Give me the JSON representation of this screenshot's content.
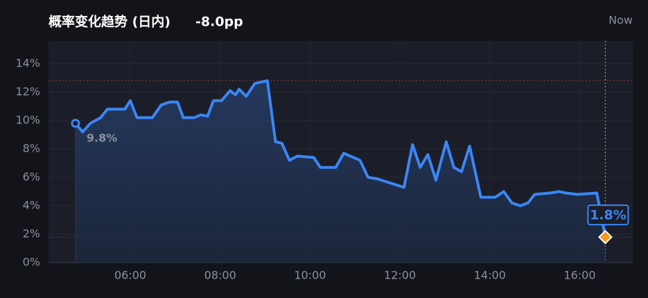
{
  "chart_data": {
    "type": "line",
    "title": "概率变化趋势 (日内)",
    "change": "-8.0pp",
    "now_label": "Now",
    "color": "#3b86f5",
    "x": [
      4.78,
      4.94,
      5.11,
      5.34,
      5.49,
      5.88,
      6.0,
      6.15,
      6.49,
      6.69,
      6.88,
      7.05,
      7.18,
      7.42,
      7.57,
      7.72,
      7.85,
      8.03,
      8.22,
      8.34,
      8.42,
      8.58,
      8.77,
      9.05,
      9.23,
      9.37,
      9.54,
      9.72,
      10.08,
      10.23,
      10.57,
      10.75,
      11.11,
      11.29,
      11.49,
      12.09,
      12.28,
      12.45,
      12.62,
      12.8,
      13.03,
      13.2,
      13.37,
      13.55,
      13.8,
      14.12,
      14.31,
      14.49,
      14.68,
      14.85,
      15.0,
      15.34,
      15.54,
      15.69,
      15.95,
      16.38,
      16.57
    ],
    "values": [
      9.8,
      9.2,
      9.8,
      10.2,
      10.8,
      10.8,
      11.4,
      10.2,
      10.2,
      11.1,
      11.3,
      11.3,
      10.2,
      10.2,
      10.4,
      10.3,
      11.4,
      11.4,
      12.1,
      11.8,
      12.2,
      11.7,
      12.6,
      12.8,
      8.5,
      8.4,
      7.2,
      7.5,
      7.4,
      6.7,
      6.7,
      7.7,
      7.2,
      6.0,
      5.9,
      5.3,
      8.3,
      6.7,
      7.6,
      5.8,
      8.5,
      6.7,
      6.4,
      8.2,
      4.6,
      4.6,
      5.0,
      4.2,
      4.0,
      4.2,
      4.8,
      4.9,
      5.0,
      4.9,
      4.8,
      4.9,
      1.8
    ],
    "start_label": "9.8%",
    "end_label": "1.8%",
    "xlim": [
      4.18,
      17.18
    ],
    "xticks": [
      {
        "value": 6,
        "label": "06:00"
      },
      {
        "value": 8,
        "label": "08:00"
      },
      {
        "value": 10,
        "label": "10:00"
      },
      {
        "value": 12,
        "label": "12:00"
      },
      {
        "value": 14,
        "label": "14:00"
      },
      {
        "value": 16,
        "label": "16:00"
      }
    ],
    "ylim": [
      0,
      15.6
    ],
    "yticks": [
      {
        "value": 0,
        "label": "0%"
      },
      {
        "value": 2,
        "label": "2%"
      },
      {
        "value": 4,
        "label": "4%"
      },
      {
        "value": 6,
        "label": "6%"
      },
      {
        "value": 8,
        "label": "8%"
      },
      {
        "value": 10,
        "label": "10%"
      },
      {
        "value": 12,
        "label": "12%"
      },
      {
        "value": 14,
        "label": "14%"
      }
    ],
    "grid": true
  }
}
